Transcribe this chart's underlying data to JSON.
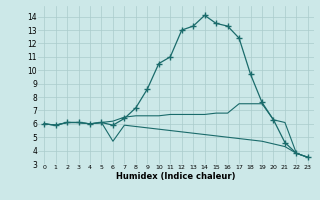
{
  "xlabel": "Humidex (Indice chaleur)",
  "bg_color": "#cce8e8",
  "line_color": "#1a6b6b",
  "grid_color": "#aacccc",
  "xlim": [
    -0.5,
    23.5
  ],
  "ylim": [
    3,
    14.8
  ],
  "yticks": [
    3,
    4,
    5,
    6,
    7,
    8,
    9,
    10,
    11,
    12,
    13,
    14
  ],
  "xticks": [
    0,
    1,
    2,
    3,
    4,
    5,
    6,
    7,
    8,
    9,
    10,
    11,
    12,
    13,
    14,
    15,
    16,
    17,
    18,
    19,
    20,
    21,
    22,
    23
  ],
  "series": [
    {
      "x": [
        0,
        1,
        2,
        3,
        4,
        5,
        6,
        7,
        8,
        9,
        10,
        11,
        12,
        13,
        14,
        15,
        16,
        17,
        18,
        19,
        20,
        21,
        22,
        23
      ],
      "y": [
        6.0,
        5.9,
        6.1,
        6.1,
        6.0,
        6.1,
        6.2,
        6.5,
        6.6,
        6.6,
        6.6,
        6.7,
        6.7,
        6.7,
        6.7,
        6.8,
        6.8,
        7.5,
        7.5,
        7.5,
        6.3,
        6.1,
        3.8,
        3.5
      ],
      "marker": null,
      "linestyle": "-",
      "linewidth": 0.8
    },
    {
      "x": [
        0,
        1,
        2,
        3,
        4,
        5,
        6,
        7,
        8,
        9,
        10,
        11,
        12,
        13,
        14,
        15,
        16,
        17,
        18,
        19,
        20,
        21,
        22,
        23
      ],
      "y": [
        6.0,
        5.9,
        6.1,
        6.1,
        6.0,
        6.1,
        4.7,
        5.9,
        5.8,
        5.7,
        5.6,
        5.5,
        5.4,
        5.3,
        5.2,
        5.1,
        5.0,
        4.9,
        4.8,
        4.7,
        4.5,
        4.3,
        3.8,
        3.5
      ],
      "marker": null,
      "linestyle": "-",
      "linewidth": 0.8
    },
    {
      "x": [
        0,
        1,
        2,
        3,
        4,
        5,
        6,
        7,
        8,
        9,
        10,
        11,
        12,
        13,
        14,
        15,
        16,
        17,
        18,
        19,
        20,
        21,
        22,
        23
      ],
      "y": [
        6.0,
        5.9,
        6.1,
        6.1,
        6.0,
        6.1,
        5.9,
        6.4,
        7.2,
        8.6,
        10.5,
        11.0,
        13.0,
        13.3,
        14.1,
        13.5,
        13.3,
        12.4,
        9.7,
        7.6,
        6.3,
        4.6,
        3.8,
        3.5
      ],
      "marker": "+",
      "linestyle": "-",
      "linewidth": 0.9,
      "markersize": 4
    }
  ]
}
